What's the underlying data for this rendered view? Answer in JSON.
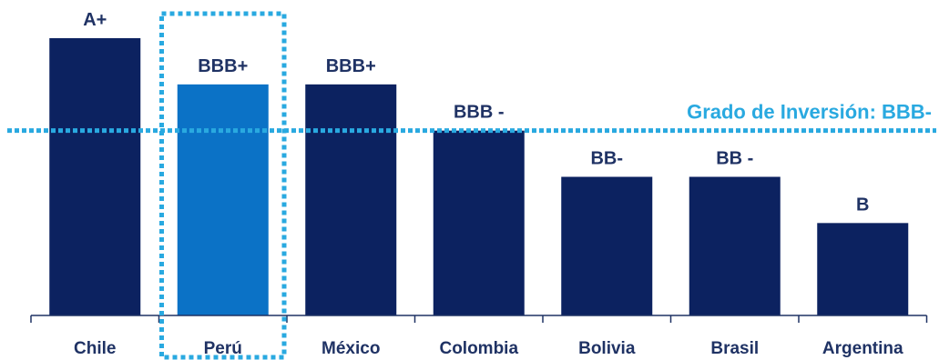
{
  "chart_data": {
    "type": "bar",
    "categories": [
      "Chile",
      "Perú",
      "México",
      "Colombia",
      "Bolivia",
      "Brasil",
      "Argentina"
    ],
    "values": [
      6,
      5,
      5,
      4,
      3,
      3,
      2
    ],
    "data_labels": [
      "A+",
      "BBB+",
      "BBB+",
      "BBB -",
      "BB-",
      "BB -",
      "B"
    ],
    "highlight_category": "Perú",
    "reference_line": {
      "value": 4,
      "label": "Grado de Inversión: BBB-"
    },
    "ylim": [
      0,
      6
    ],
    "grid": false,
    "colors": {
      "bar": "#0c2260",
      "highlight_bar": "#0b72c6",
      "reference": "#29a9e0",
      "text": "#1f3264"
    }
  }
}
